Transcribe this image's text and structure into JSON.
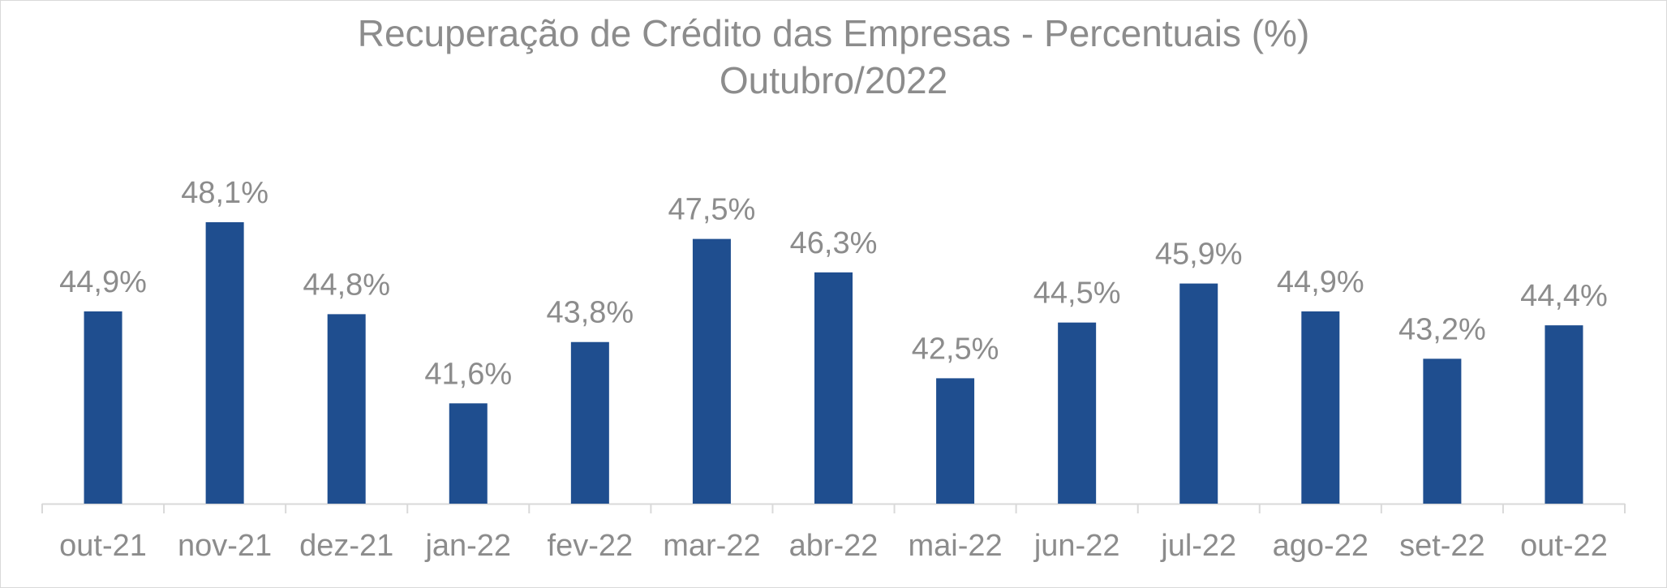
{
  "chart_data": {
    "type": "bar",
    "title": "Recuperação de Crédito das Empresas - Percentuais (%)",
    "subtitle": "Outubro/2022",
    "categories": [
      "out-21",
      "nov-21",
      "dez-21",
      "jan-22",
      "fev-22",
      "mar-22",
      "abr-22",
      "mai-22",
      "jun-22",
      "jul-22",
      "ago-22",
      "set-22",
      "out-22"
    ],
    "values": [
      44.9,
      48.1,
      44.8,
      41.6,
      43.8,
      47.5,
      46.3,
      42.5,
      44.5,
      45.9,
      44.9,
      43.2,
      44.4
    ],
    "data_labels": [
      "44,9%",
      "48,1%",
      "44,8%",
      "41,6%",
      "43,8%",
      "47,5%",
      "46,3%",
      "42,5%",
      "44,5%",
      "45,9%",
      "44,9%",
      "43,2%",
      "44,4%"
    ],
    "xlabel": "",
    "ylabel": "",
    "ylim": [
      38.0,
      49.0
    ],
    "grid": false,
    "legend": "none",
    "colors": {
      "bar": "#1f4e8f",
      "text": "#8c8c8c",
      "axis": "#d9d9d9"
    }
  }
}
